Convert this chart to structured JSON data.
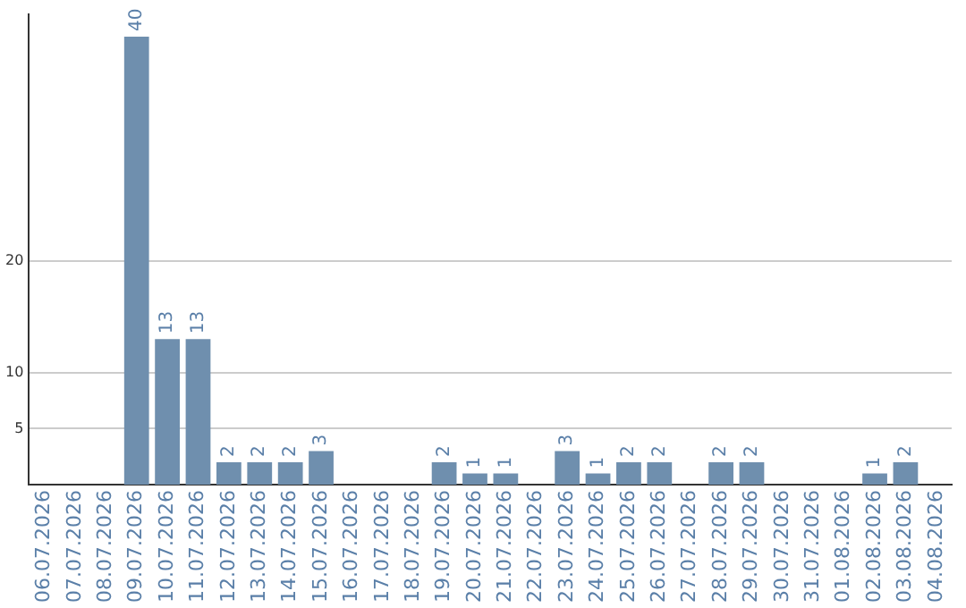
{
  "chart_data": {
    "type": "bar",
    "categories": [
      "06.07.2026",
      "07.07.2026",
      "08.07.2026",
      "09.07.2026",
      "10.07.2026",
      "11.07.2026",
      "12.07.2026",
      "13.07.2026",
      "14.07.2026",
      "15.07.2026",
      "16.07.2026",
      "17.07.2026",
      "18.07.2026",
      "19.07.2026",
      "20.07.2026",
      "21.07.2026",
      "22.07.2026",
      "23.07.2026",
      "24.07.2026",
      "25.07.2026",
      "26.07.2026",
      "27.07.2026",
      "28.07.2026",
      "29.07.2026",
      "30.07.2026",
      "31.07.2026",
      "01.08.2026",
      "02.08.2026",
      "03.08.2026",
      "04.08.2026"
    ],
    "values": [
      0,
      0,
      0,
      40,
      13,
      13,
      2,
      2,
      2,
      3,
      0,
      0,
      0,
      2,
      1,
      1,
      0,
      3,
      1,
      2,
      2,
      0,
      2,
      2,
      0,
      0,
      0,
      1,
      2,
      0
    ],
    "value_labels": [
      null,
      null,
      null,
      "40",
      "13",
      "13",
      "2",
      "2",
      "2",
      "3",
      null,
      null,
      null,
      "2",
      "1",
      "1",
      null,
      "3",
      "1",
      "2",
      "2",
      null,
      "2",
      "2",
      null,
      null,
      null,
      "1",
      "2",
      null
    ],
    "color": "#6f8fae",
    "ylim": [
      0,
      42
    ],
    "yticks": [
      5,
      10,
      20
    ],
    "grid": "y",
    "legend": false
  }
}
